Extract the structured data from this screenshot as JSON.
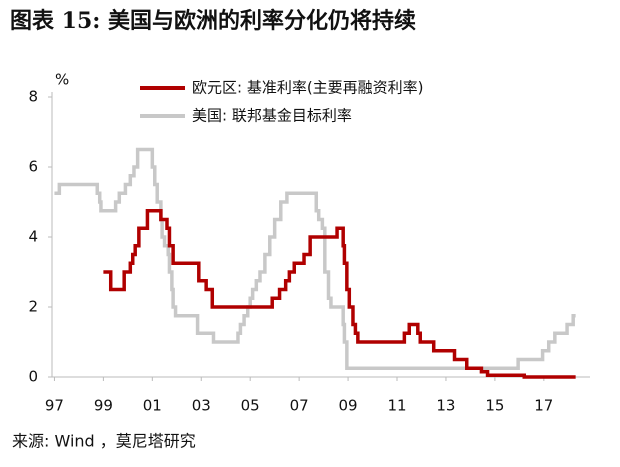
{
  "chart_data": {
    "type": "line",
    "step": "post",
    "title": "图表 15:  美国与欧洲的利率分化仍将持续",
    "y_unit": "%",
    "source": "来源:  Wind ，莫尼塔研究",
    "xlim": [
      1996.9,
      2019.5
    ],
    "xticks": [
      {
        "value": 1997,
        "label": "97"
      },
      {
        "value": 1999,
        "label": "99"
      },
      {
        "value": 2001,
        "label": "01"
      },
      {
        "value": 2003,
        "label": "03"
      },
      {
        "value": 2005,
        "label": "05"
      },
      {
        "value": 2007,
        "label": "07"
      },
      {
        "value": 2009,
        "label": "09"
      },
      {
        "value": 2011,
        "label": "11"
      },
      {
        "value": 2013,
        "label": "13"
      },
      {
        "value": 2015,
        "label": "15"
      },
      {
        "value": 2017,
        "label": "17"
      }
    ],
    "ylim": [
      0,
      8
    ],
    "yticks": [
      0,
      2,
      4,
      6,
      8
    ],
    "series": [
      {
        "name": "欧元区: 基准利率(主要再融资利率)",
        "color": "#b00000",
        "x": [
          1999.0,
          1999.3,
          1999.85,
          2000.1,
          2000.2,
          2000.3,
          2000.45,
          2000.8,
          2001.35,
          2001.6,
          2001.7,
          2001.85,
          2002.9,
          2003.2,
          2003.45,
          2005.9,
          2006.2,
          2006.45,
          2006.6,
          2006.8,
          2007.2,
          2007.45,
          2008.55,
          2008.8,
          2008.85,
          2008.95,
          2009.05,
          2009.2,
          2009.3,
          2009.4,
          2011.3,
          2011.5,
          2011.85,
          2011.95,
          2012.5,
          2013.35,
          2013.85,
          2014.45,
          2014.7,
          2016.2,
          2018.3
        ],
        "values": [
          3.0,
          2.5,
          3.0,
          3.25,
          3.5,
          3.75,
          4.25,
          4.75,
          4.5,
          4.25,
          3.75,
          3.25,
          2.75,
          2.5,
          2.0,
          2.25,
          2.5,
          2.75,
          3.0,
          3.25,
          3.5,
          4.0,
          4.25,
          3.75,
          3.25,
          2.5,
          2.0,
          1.5,
          1.25,
          1.0,
          1.25,
          1.5,
          1.25,
          1.0,
          0.75,
          0.5,
          0.25,
          0.15,
          0.05,
          0.0,
          0.0
        ]
      },
      {
        "name": "美国: 联邦基金目标利率",
        "color": "#c8c8c8",
        "x": [
          1997.0,
          1997.2,
          1998.75,
          1998.85,
          1998.9,
          1999.5,
          1999.65,
          1999.9,
          2000.1,
          2000.25,
          2000.4,
          2001.0,
          2001.1,
          2001.2,
          2001.35,
          2001.4,
          2001.5,
          2001.65,
          2001.7,
          2001.8,
          2001.85,
          2001.95,
          2002.85,
          2003.5,
          2004.5,
          2004.6,
          2004.75,
          2004.9,
          2005.0,
          2005.1,
          2005.25,
          2005.4,
          2005.6,
          2005.8,
          2006.0,
          2006.25,
          2006.5,
          2007.7,
          2007.8,
          2007.95,
          2008.05,
          2008.2,
          2008.3,
          2008.8,
          2008.85,
          2008.95,
          2015.95,
          2016.95,
          2017.2,
          2017.45,
          2017.95,
          2018.2,
          2018.3
        ],
        "values": [
          5.25,
          5.5,
          5.25,
          5.0,
          4.75,
          5.0,
          5.25,
          5.5,
          5.75,
          6.0,
          6.5,
          6.0,
          5.5,
          5.0,
          4.5,
          4.0,
          3.75,
          3.5,
          3.0,
          2.5,
          2.0,
          1.75,
          1.25,
          1.0,
          1.25,
          1.5,
          1.75,
          2.0,
          2.25,
          2.5,
          2.75,
          3.0,
          3.5,
          4.0,
          4.5,
          5.0,
          5.25,
          4.75,
          4.5,
          4.25,
          3.0,
          2.25,
          2.0,
          1.5,
          1.0,
          0.25,
          0.5,
          0.75,
          1.0,
          1.25,
          1.5,
          1.75,
          1.75
        ]
      }
    ]
  }
}
